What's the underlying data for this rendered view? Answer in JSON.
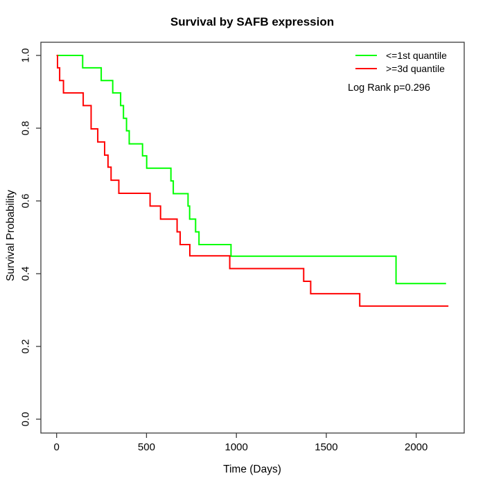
{
  "title": "Survival by SAFB expression",
  "chart_data": {
    "type": "line",
    "subtype": "kaplan-meier-step",
    "title": "Survival by SAFB expression",
    "xlabel": "Time (Days)",
    "ylabel": "Survival Probability",
    "xlim": [
      0,
      2200
    ],
    "ylim": [
      0.0,
      1.0
    ],
    "grid": false,
    "legend_position": "top-right",
    "annotation": "Log Rank p=0.296",
    "x_ticks": [
      0,
      500,
      1000,
      1500,
      2000
    ],
    "y_ticks": [
      {
        "v": 0.0,
        "label": "0.0"
      },
      {
        "v": 0.2,
        "label": "0.2"
      },
      {
        "v": 0.4,
        "label": "0.4"
      },
      {
        "v": 0.6,
        "label": "0.6"
      },
      {
        "v": 0.8,
        "label": "0.8"
      },
      {
        "v": 1.0,
        "label": "1.0"
      }
    ],
    "series": [
      {
        "name": "<=1st quantile",
        "color": "#00ff00",
        "end_time": 2166,
        "steps": [
          [
            0,
            1.0
          ],
          [
            145,
            0.966
          ],
          [
            248,
            0.931
          ],
          [
            312,
            0.897
          ],
          [
            356,
            0.862
          ],
          [
            372,
            0.827
          ],
          [
            389,
            0.793
          ],
          [
            404,
            0.757
          ],
          [
            478,
            0.724
          ],
          [
            501,
            0.69
          ],
          [
            636,
            0.655
          ],
          [
            649,
            0.62
          ],
          [
            731,
            0.586
          ],
          [
            740,
            0.55
          ],
          [
            773,
            0.515
          ],
          [
            792,
            0.48
          ],
          [
            970,
            0.448
          ],
          [
            1888,
            0.373
          ]
        ]
      },
      {
        "name": ">=3d quantile",
        "color": "#ff0000",
        "end_time": 2179,
        "steps": [
          [
            0,
            1.0
          ],
          [
            5,
            0.966
          ],
          [
            17,
            0.931
          ],
          [
            38,
            0.897
          ],
          [
            148,
            0.862
          ],
          [
            192,
            0.798
          ],
          [
            229,
            0.762
          ],
          [
            267,
            0.726
          ],
          [
            286,
            0.693
          ],
          [
            303,
            0.657
          ],
          [
            346,
            0.621
          ],
          [
            520,
            0.586
          ],
          [
            578,
            0.55
          ],
          [
            670,
            0.515
          ],
          [
            687,
            0.48
          ],
          [
            741,
            0.449
          ],
          [
            963,
            0.414
          ],
          [
            1374,
            0.379
          ],
          [
            1413,
            0.345
          ],
          [
            1686,
            0.311
          ]
        ]
      }
    ]
  },
  "legend": {
    "items": [
      {
        "label": "<=1st quantile",
        "color": "#00ff00"
      },
      {
        "label": ">=3d quantile",
        "color": "#ff0000"
      }
    ],
    "annotation": "Log Rank p=0.296"
  }
}
